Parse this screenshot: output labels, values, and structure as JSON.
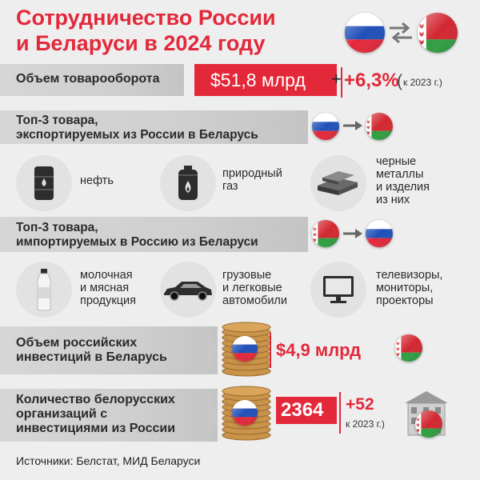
{
  "title": {
    "line1": "Сотрудничество России",
    "line2": "и Беларуси в 2024 году"
  },
  "trade": {
    "label": "Объем товарооборота",
    "value": "$51,8 млрд",
    "change": "+6,3%",
    "change_note": "к 2023 г.)",
    "plus_sign": "+",
    "open_paren": "("
  },
  "exports": {
    "line1": "Топ-3 товара,",
    "line2": "экспортируемых из России в Беларусь",
    "items": [
      {
        "icon": "oil-barrel-icon",
        "line1": "нефть"
      },
      {
        "icon": "gas-cylinder-icon",
        "line1": "природный",
        "line2": "газ"
      },
      {
        "icon": "metal-bars-icon",
        "line1": "черные",
        "line2": "металлы",
        "line3": "и изделия",
        "line4": "из них"
      }
    ]
  },
  "imports": {
    "line1": "Топ-3 товара,",
    "line2": "импортируемых в Россию из Беларуси",
    "items": [
      {
        "icon": "milk-bottle-icon",
        "line1": "молочная",
        "line2": "и мясная",
        "line3": "продукция"
      },
      {
        "icon": "car-icon",
        "line1": "грузовые",
        "line2": "и легковые",
        "line3": "автомобили"
      },
      {
        "icon": "monitor-icon",
        "line1": "телевизоры,",
        "line2": "мониторы,",
        "line3": "проекторы"
      }
    ]
  },
  "investments": {
    "line1": "Объем российских",
    "line2": "инвестиций в Беларусь",
    "value": "$4,9 млрд"
  },
  "organizations": {
    "line1": "Количество белорусских",
    "line2": "организаций с",
    "line3": "инвестициями из России",
    "value": "2364",
    "change": "+52",
    "change_note": "к 2023 г.)"
  },
  "source": "Источники: Белстат, МИД Беларуси",
  "colors": {
    "accent": "#e3283a",
    "band": "#d3d3d3",
    "background": "#eeeeee",
    "russia_white": "#ffffff",
    "russia_blue": "#1f4fb8",
    "russia_red": "#e3283a",
    "belarus_red": "#d22730",
    "belarus_green": "#2f9e41"
  }
}
